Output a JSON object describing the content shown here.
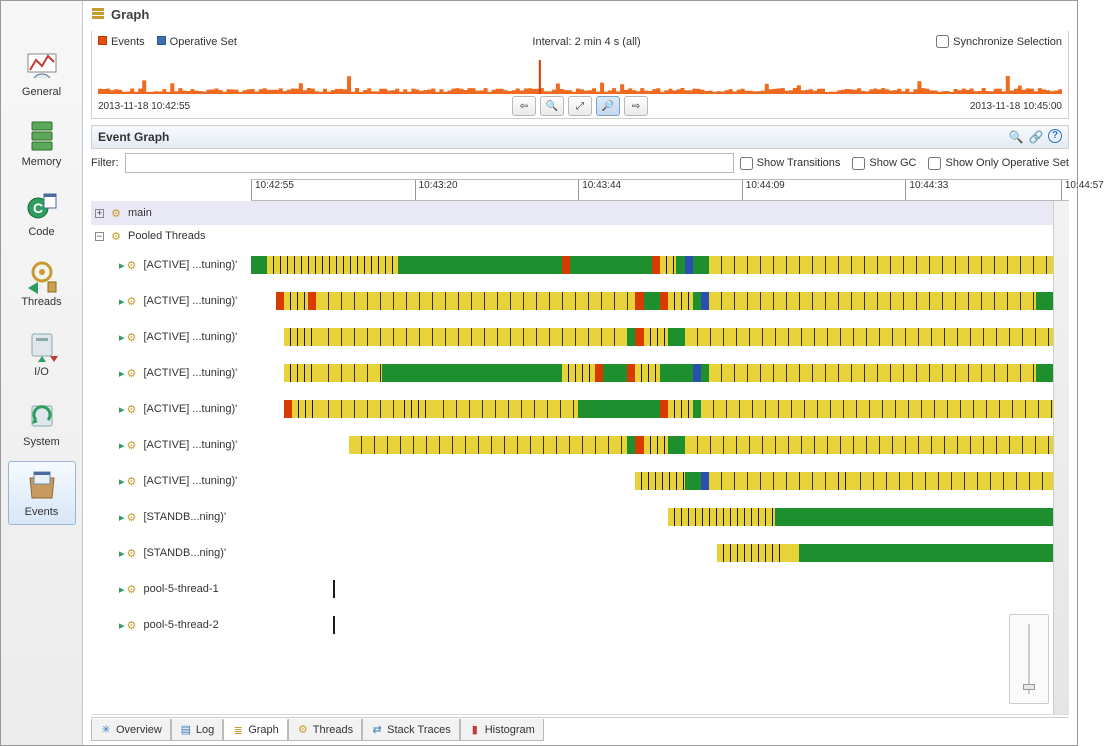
{
  "title": "Graph",
  "leftbar": [
    {
      "id": "general",
      "label": "General"
    },
    {
      "id": "memory",
      "label": "Memory"
    },
    {
      "id": "code",
      "label": "Code"
    },
    {
      "id": "threads",
      "label": "Threads"
    },
    {
      "id": "io",
      "label": "I/O"
    },
    {
      "id": "system",
      "label": "System"
    },
    {
      "id": "events",
      "label": "Events"
    }
  ],
  "leftbar_selected": "events",
  "upper": {
    "legend": [
      {
        "name": "Events",
        "color": "#e44d0c"
      },
      {
        "name": "Operative Set",
        "color": "#3b6fb6"
      }
    ],
    "interval_label": "Interval: 2 min 4 s (all)",
    "sync_label": "Synchronize Selection",
    "ts_left": "2013-11-18 10:42:55",
    "ts_right": "2013-11-18 10:45:00",
    "spark_color": "#ef6a1f",
    "spark_peak_color": "#d93a00"
  },
  "section": {
    "title": "Event Graph",
    "icons": [
      "zoom-icon",
      "link-icon",
      "help-icon"
    ]
  },
  "filter": {
    "label": "Filter:",
    "value": "",
    "placeholder": "",
    "checks": [
      {
        "id": "show-transitions",
        "label": "Show Transitions",
        "checked": false
      },
      {
        "id": "show-gc",
        "label": "Show GC",
        "checked": false
      },
      {
        "id": "show-only-opset",
        "label": "Show Only Operative Set",
        "checked": false
      }
    ]
  },
  "ruler": {
    "ticks": [
      {
        "pct": 0,
        "label": "10:42:55"
      },
      {
        "pct": 20,
        "label": "10:43:20"
      },
      {
        "pct": 40,
        "label": "10:43:44"
      },
      {
        "pct": 60,
        "label": "10:44:09"
      },
      {
        "pct": 80,
        "label": "10:44:33"
      },
      {
        "pct": 99,
        "label": "10:44:57"
      }
    ]
  },
  "groups": [
    {
      "name": "main",
      "expand": "plus"
    },
    {
      "name": "Pooled Threads",
      "expand": "minus"
    }
  ],
  "threads": [
    {
      "label": "[ACTIVE] ...tuning)'",
      "start_pct": 0,
      "segments": [
        {
          "c": "#1e8f2e",
          "w": 2
        },
        {
          "c": "stripes-yg",
          "w": 16
        },
        {
          "c": "#1e8f2e",
          "w": 20
        },
        {
          "c": "#d93a00",
          "w": 1
        },
        {
          "c": "#1e8f2e",
          "w": 10
        },
        {
          "c": "#d93a00",
          "w": 1
        },
        {
          "c": "stripes-yg",
          "w": 2
        },
        {
          "c": "#1e8f2e",
          "w": 1
        },
        {
          "c": "#2a4fb0",
          "w": 1
        },
        {
          "c": "#1e8f2e",
          "w": 2
        },
        {
          "c": "stripes-y",
          "w": 44
        }
      ]
    },
    {
      "label": "[ACTIVE] ...tuning)'",
      "start_pct": 3,
      "segments": [
        {
          "c": "#d93a00",
          "w": 1
        },
        {
          "c": "stripes-yg",
          "w": 3
        },
        {
          "c": "#d93a00",
          "w": 1
        },
        {
          "c": "stripes-y",
          "w": 39
        },
        {
          "c": "#d93a00",
          "w": 1
        },
        {
          "c": "#1e8f2e",
          "w": 2
        },
        {
          "c": "#d93a00",
          "w": 1
        },
        {
          "c": "stripes-yg",
          "w": 3
        },
        {
          "c": "#1e8f2e",
          "w": 1
        },
        {
          "c": "#2a4fb0",
          "w": 1
        },
        {
          "c": "stripes-y",
          "w": 40
        },
        {
          "c": "#1e8f2e",
          "w": 4
        }
      ]
    },
    {
      "label": "[ACTIVE] ...tuning)'",
      "start_pct": 4,
      "segments": [
        {
          "c": "stripes-yg",
          "w": 4
        },
        {
          "c": "stripes-y",
          "w": 38
        },
        {
          "c": "#1e8f2e",
          "w": 1
        },
        {
          "c": "#d93a00",
          "w": 1
        },
        {
          "c": "stripes-yg",
          "w": 3
        },
        {
          "c": "#1e8f2e",
          "w": 2
        },
        {
          "c": "stripes-y",
          "w": 47
        }
      ]
    },
    {
      "label": "[ACTIVE] ...tuning)'",
      "start_pct": 4,
      "segments": [
        {
          "c": "stripes-yg",
          "w": 4
        },
        {
          "c": "stripes-y",
          "w": 8
        },
        {
          "c": "#1e8f2e",
          "w": 22
        },
        {
          "c": "stripes-yg",
          "w": 4
        },
        {
          "c": "#d93a00",
          "w": 1
        },
        {
          "c": "#1e8f2e",
          "w": 3
        },
        {
          "c": "#d93a00",
          "w": 1
        },
        {
          "c": "stripes-yg",
          "w": 3
        },
        {
          "c": "#1e8f2e",
          "w": 4
        },
        {
          "c": "#2a4fb0",
          "w": 1
        },
        {
          "c": "#1e8f2e",
          "w": 1
        },
        {
          "c": "stripes-y",
          "w": 40
        },
        {
          "c": "#1e8f2e",
          "w": 4
        }
      ]
    },
    {
      "label": "[ACTIVE] ...tuning)'",
      "start_pct": 4,
      "segments": [
        {
          "c": "#d93a00",
          "w": 1
        },
        {
          "c": "stripes-yg",
          "w": 3
        },
        {
          "c": "stripes-y",
          "w": 10
        },
        {
          "c": "stripes-yg",
          "w": 4
        },
        {
          "c": "stripes-y",
          "w": 18
        },
        {
          "c": "#1e8f2e",
          "w": 10
        },
        {
          "c": "#d93a00",
          "w": 1
        },
        {
          "c": "stripes-yg",
          "w": 3
        },
        {
          "c": "#1e8f2e",
          "w": 1
        },
        {
          "c": "stripes-y",
          "w": 45
        }
      ]
    },
    {
      "label": "[ACTIVE] ...tuning)'",
      "start_pct": 12,
      "segments": [
        {
          "c": "stripes-y",
          "w": 34
        },
        {
          "c": "#1e8f2e",
          "w": 1
        },
        {
          "c": "#d93a00",
          "w": 1
        },
        {
          "c": "stripes-yg",
          "w": 3
        },
        {
          "c": "#1e8f2e",
          "w": 2
        },
        {
          "c": "stripes-y",
          "w": 47
        }
      ]
    },
    {
      "label": "[ACTIVE] ...tuning)'",
      "start_pct": 47,
      "segments": [
        {
          "c": "stripes-yg",
          "w": 6
        },
        {
          "c": "#1e8f2e",
          "w": 2
        },
        {
          "c": "#2a4fb0",
          "w": 1
        },
        {
          "c": "stripes-y",
          "w": 15
        },
        {
          "c": "stripes-yg",
          "w": 2
        },
        {
          "c": "stripes-y",
          "w": 27
        }
      ]
    },
    {
      "label": "[STANDB...ning)'",
      "start_pct": 51,
      "segments": [
        {
          "c": "stripes-yg",
          "w": 13
        },
        {
          "c": "#1e8f2e",
          "w": 36
        }
      ]
    },
    {
      "label": "[STANDB...ning)'",
      "start_pct": 57,
      "segments": [
        {
          "c": "stripes-yg",
          "w": 8
        },
        {
          "c": "#e8d23a",
          "w": 2
        },
        {
          "c": "#1e8f2e",
          "w": 31
        }
      ]
    },
    {
      "label": "pool-5-thread-1",
      "start_pct": 10,
      "segments": [
        {
          "c": "#1a1a1a",
          "w": 0.3
        }
      ]
    },
    {
      "label": "pool-5-thread-2",
      "start_pct": 10,
      "segments": [
        {
          "c": "#1a1a1a",
          "w": 0.3
        }
      ]
    }
  ],
  "tabs": [
    {
      "id": "overview",
      "label": "Overview",
      "icon": "✳",
      "color": "#3a7abd"
    },
    {
      "id": "log",
      "label": "Log",
      "icon": "▤",
      "color": "#3a7abd"
    },
    {
      "id": "graph",
      "label": "Graph",
      "icon": "≣",
      "color": "#c99a2e"
    },
    {
      "id": "threads",
      "label": "Threads",
      "icon": "⚙",
      "color": "#c99a2e"
    },
    {
      "id": "stack",
      "label": "Stack Traces",
      "icon": "⇄",
      "color": "#3a7abd"
    },
    {
      "id": "histogram",
      "label": "Histogram",
      "icon": "▮",
      "color": "#c13a3a"
    }
  ],
  "tabs_active": "graph",
  "colors": {
    "green": "#1e8f2e",
    "yellow": "#e8d23a",
    "red": "#d93a00",
    "blue": "#2a4fb0",
    "dark": "#1a1a1a"
  }
}
